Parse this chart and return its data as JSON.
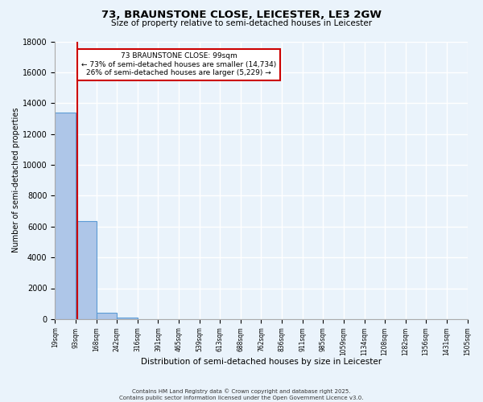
{
  "title_line1": "73, BRAUNSTONE CLOSE, LEICESTER, LE3 2GW",
  "title_line2": "Size of property relative to semi-detached houses in Leicester",
  "xlabel": "Distribution of semi-detached houses by size in Leicester",
  "ylabel": "Number of semi-detached properties",
  "bin_edges": [
    19,
    93,
    168,
    242,
    316,
    391,
    465,
    539,
    613,
    688,
    762,
    836,
    911,
    985,
    1059,
    1134,
    1208,
    1282,
    1356,
    1431,
    1505
  ],
  "bin_heights": [
    13400,
    6350,
    390,
    100,
    0,
    0,
    0,
    0,
    0,
    0,
    0,
    0,
    0,
    0,
    0,
    0,
    0,
    0,
    0,
    0
  ],
  "bar_color": "#aec6e8",
  "bar_edge_color": "#5b9bd5",
  "property_size": 99,
  "red_line_color": "#cc0000",
  "annotation_text_line1": "73 BRAUNSTONE CLOSE: 99sqm",
  "annotation_text_line2": "← 73% of semi-detached houses are smaller (14,734)",
  "annotation_text_line3": "26% of semi-detached houses are larger (5,229) →",
  "annotation_box_color": "#ffffff",
  "annotation_box_edge": "#cc0000",
  "ylim": [
    0,
    18000
  ],
  "yticks": [
    0,
    2000,
    4000,
    6000,
    8000,
    10000,
    12000,
    14000,
    16000,
    18000
  ],
  "background_color": "#eaf3fb",
  "grid_color": "#ffffff",
  "footer_line1": "Contains HM Land Registry data © Crown copyright and database right 2025.",
  "footer_line2": "Contains public sector information licensed under the Open Government Licence v3.0."
}
